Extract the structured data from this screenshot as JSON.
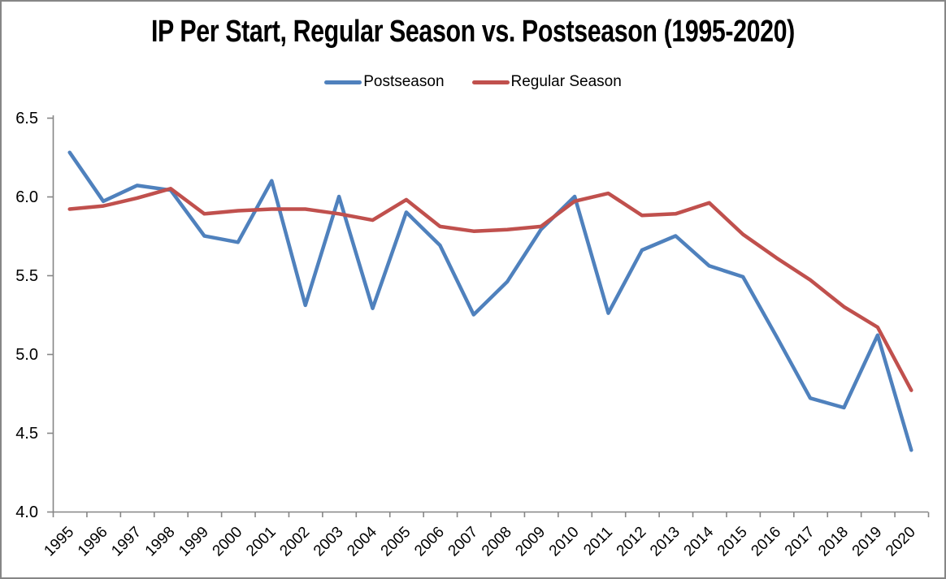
{
  "window": {
    "background": "#ffffff",
    "border_color": "#868686",
    "axis_color": "#868686",
    "text_color": "#000000"
  },
  "chart_data": {
    "type": "line",
    "title": "IP Per Start, Regular Season vs. Postseason (1995-2020)",
    "xlabel": "",
    "ylabel": "",
    "categories": [
      "1995",
      "1996",
      "1997",
      "1998",
      "1999",
      "2000",
      "2001",
      "2002",
      "2003",
      "2004",
      "2005",
      "2006",
      "2007",
      "2008",
      "2009",
      "2010",
      "2011",
      "2012",
      "2013",
      "2014",
      "2015",
      "2016",
      "2017",
      "2018",
      "2019",
      "2020"
    ],
    "series": [
      {
        "name": "Postseason",
        "color": "#4F81BD",
        "values": [
          6.28,
          5.97,
          6.07,
          6.04,
          5.75,
          5.71,
          6.1,
          5.31,
          6.0,
          5.29,
          5.9,
          5.69,
          5.25,
          5.46,
          5.79,
          6.0,
          5.26,
          5.66,
          5.75,
          5.56,
          5.49,
          5.11,
          4.72,
          4.66,
          5.12,
          4.39
        ]
      },
      {
        "name": "Regular Season",
        "color": "#C0504D",
        "values": [
          5.92,
          5.94,
          5.99,
          6.05,
          5.89,
          5.91,
          5.92,
          5.92,
          5.89,
          5.85,
          5.98,
          5.81,
          5.78,
          5.79,
          5.81,
          5.97,
          6.02,
          5.88,
          5.89,
          5.96,
          5.76,
          5.61,
          5.47,
          5.3,
          5.17,
          4.77
        ]
      }
    ],
    "ylim": [
      4.0,
      6.5
    ],
    "yticks": [
      "4.0",
      "4.5",
      "5.0",
      "5.5",
      "6.0",
      "6.5"
    ],
    "grid": false,
    "legend_position": "top",
    "x_labels_rotation_deg": -45
  }
}
